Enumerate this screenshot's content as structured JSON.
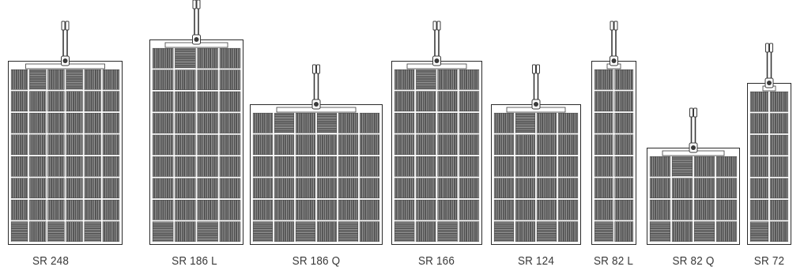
{
  "panels": [
    {
      "label": "SR 248",
      "cols": 6,
      "rows": 8,
      "hatched": [
        1,
        3
      ]
    },
    {
      "label": "SR 186 L",
      "cols": 4,
      "rows": 9,
      "hatched": [
        1
      ]
    },
    {
      "label": "SR 186 Q",
      "cols": 6,
      "rows": 6,
      "hatched": [
        1,
        3
      ]
    },
    {
      "label": "SR 166",
      "cols": 4,
      "rows": 8,
      "hatched": [
        1
      ]
    },
    {
      "label": "SR 124",
      "cols": 4,
      "rows": 6,
      "hatched": [
        1
      ]
    },
    {
      "label": "SR 82 L",
      "cols": 2,
      "rows": 8,
      "hatched": []
    },
    {
      "label": "SR 82 Q",
      "cols": 4,
      "rows": 4,
      "hatched": [
        1
      ]
    },
    {
      "label": "SR 72",
      "cols": 2,
      "rows": 7,
      "hatched": []
    }
  ],
  "colors": {
    "outline": "#3a3a3a",
    "cell": "#4a4a4a",
    "cell_line": "#cfcfcf",
    "frame": "#2a2a2a"
  }
}
